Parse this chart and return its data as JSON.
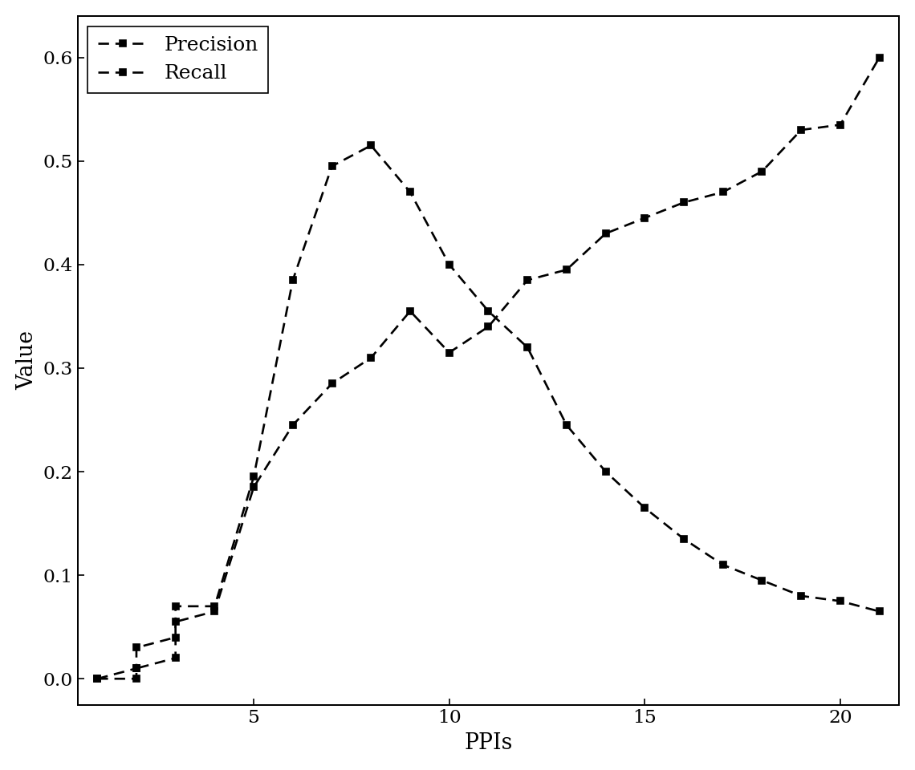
{
  "precision_x": [
    1,
    2,
    2,
    3,
    3,
    4,
    5,
    6,
    7,
    8,
    9,
    10,
    11,
    12,
    13,
    14,
    15,
    16,
    17,
    18,
    19,
    20,
    21
  ],
  "precision_y": [
    0.0,
    0.0,
    0.01,
    0.02,
    0.07,
    0.07,
    0.195,
    0.385,
    0.495,
    0.515,
    0.47,
    0.4,
    0.355,
    0.32,
    0.245,
    0.2,
    0.165,
    0.135,
    0.11,
    0.095,
    0.08,
    0.075,
    0.065
  ],
  "recall_x": [
    1,
    2,
    2,
    3,
    3,
    4,
    5,
    6,
    7,
    8,
    9,
    10,
    11,
    12,
    13,
    14,
    15,
    16,
    17,
    18,
    19,
    20,
    21
  ],
  "recall_y": [
    0.0,
    0.01,
    0.03,
    0.04,
    0.055,
    0.065,
    0.185,
    0.245,
    0.285,
    0.31,
    0.355,
    0.315,
    0.34,
    0.385,
    0.395,
    0.43,
    0.445,
    0.46,
    0.47,
    0.49,
    0.53,
    0.535,
    0.6
  ],
  "line_color": "#000000",
  "line_width": 1.6,
  "marker": "s",
  "marker_size": 4.5,
  "xlabel": "PPIs",
  "ylabel": "Value",
  "xlim_min": 0.5,
  "xlim_max": 21.5,
  "ylim_min": -0.025,
  "ylim_max": 0.64,
  "xticks": [
    5,
    10,
    15,
    20
  ],
  "yticks": [
    0.0,
    0.1,
    0.2,
    0.3,
    0.4,
    0.5,
    0.6
  ],
  "legend_labels": [
    "Precision",
    "Recall"
  ],
  "legend_loc": "upper left",
  "background_color": "#ffffff",
  "font_size": 15,
  "label_fontsize": 16,
  "tick_fontsize": 14
}
